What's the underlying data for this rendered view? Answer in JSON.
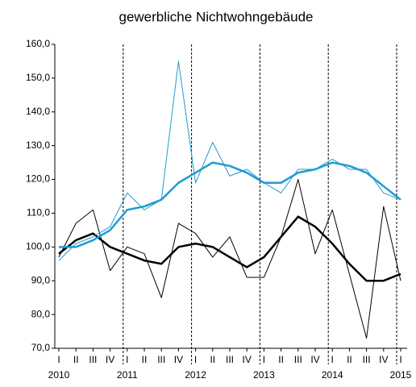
{
  "chart_data": {
    "type": "line",
    "title": "gewerbliche Nichtwohngebäude",
    "categories": [
      "I",
      "II",
      "III",
      "IV",
      "I",
      "II",
      "III",
      "IV",
      "I",
      "II",
      "III",
      "IV",
      "I",
      "II",
      "III",
      "IV",
      "I",
      "II",
      "III",
      "IV",
      "I"
    ],
    "years": [
      "2010",
      "2011",
      "2012",
      "2013",
      "2014",
      "2015"
    ],
    "ylim": [
      70,
      160
    ],
    "yticks": [
      {
        "value": 70,
        "label": "70,0"
      },
      {
        "value": 80,
        "label": "80,0"
      },
      {
        "value": 90,
        "label": "90,0"
      },
      {
        "value": 100,
        "label": "100,0"
      },
      {
        "value": 110,
        "label": "110,0"
      },
      {
        "value": 120,
        "label": "120,0"
      },
      {
        "value": 130,
        "label": "130,0"
      },
      {
        "value": 140,
        "label": "140,0"
      },
      {
        "value": 150,
        "label": "150,0"
      },
      {
        "value": 160,
        "label": "160,0"
      }
    ],
    "series": [
      {
        "color": "#000000",
        "width": 1,
        "values": [
          97,
          107,
          111,
          93,
          100,
          98,
          85,
          107,
          104,
          97,
          103,
          91,
          91,
          103,
          120,
          98,
          111,
          92,
          73,
          112,
          90
        ]
      },
      {
        "color": "#000000",
        "width": 2.5,
        "values": [
          98,
          102,
          104,
          100,
          98,
          96,
          95,
          100,
          101,
          100,
          97,
          94,
          97,
          103,
          109,
          106,
          101,
          95,
          90,
          90,
          92
        ]
      },
      {
        "color": "#1f9bd1",
        "width": 1,
        "values": [
          96,
          101,
          103,
          106,
          116,
          111,
          114,
          155,
          119,
          131,
          121,
          123,
          119,
          116,
          123,
          123,
          126,
          123,
          123,
          116,
          114
        ]
      },
      {
        "color": "#1f9bd1",
        "width": 2.5,
        "values": [
          100,
          100,
          102,
          105,
          111,
          112,
          114,
          119,
          122,
          125,
          124,
          122,
          119,
          119,
          122,
          123,
          125,
          124,
          122,
          118,
          114
        ]
      }
    ]
  }
}
